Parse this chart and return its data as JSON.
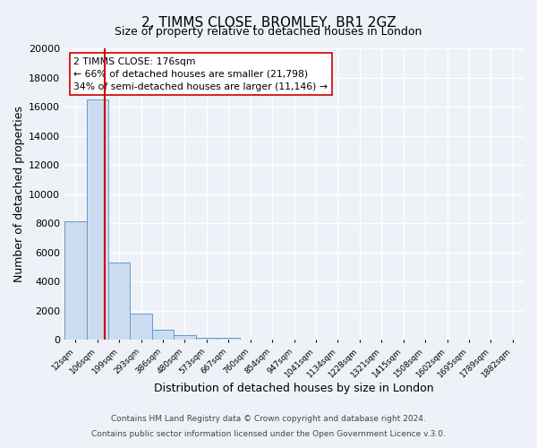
{
  "title": "2, TIMMS CLOSE, BROMLEY, BR1 2GZ",
  "subtitle": "Size of property relative to detached houses in London",
  "xlabel": "Distribution of detached houses by size in London",
  "ylabel": "Number of detached properties",
  "categories": [
    "12sqm",
    "106sqm",
    "199sqm",
    "293sqm",
    "386sqm",
    "480sqm",
    "573sqm",
    "667sqm",
    "760sqm",
    "854sqm",
    "947sqm",
    "1041sqm",
    "1134sqm",
    "1228sqm",
    "1321sqm",
    "1415sqm",
    "1508sqm",
    "1602sqm",
    "1695sqm",
    "1789sqm",
    "1882sqm"
  ],
  "bar_values": [
    8100,
    16500,
    5300,
    1800,
    700,
    300,
    150,
    150,
    0,
    0,
    0,
    0,
    0,
    0,
    0,
    0,
    0,
    0,
    0,
    0,
    0
  ],
  "bar_color": "#ccdcf0",
  "bar_edge_color": "#6699cc",
  "red_line_color": "#cc0000",
  "red_line_x": 1.85,
  "annotation_title": "2 TIMMS CLOSE: 176sqm",
  "annotation_line1": "← 66% of detached houses are smaller (21,798)",
  "annotation_line2": "34% of semi-detached houses are larger (11,146) →",
  "annotation_box_color": "#ffffff",
  "annotation_box_edge_color": "#cc0000",
  "ylim": [
    0,
    20000
  ],
  "yticks": [
    0,
    2000,
    4000,
    6000,
    8000,
    10000,
    12000,
    14000,
    16000,
    18000,
    20000
  ],
  "footer1": "Contains HM Land Registry data © Crown copyright and database right 2024.",
  "footer2": "Contains public sector information licensed under the Open Government Licence v.3.0.",
  "bg_color": "#eef2f8",
  "plot_bg_color": "#eef2f8",
  "grid_color": "#d8dfe8",
  "title_fontsize": 11,
  "subtitle_fontsize": 9
}
